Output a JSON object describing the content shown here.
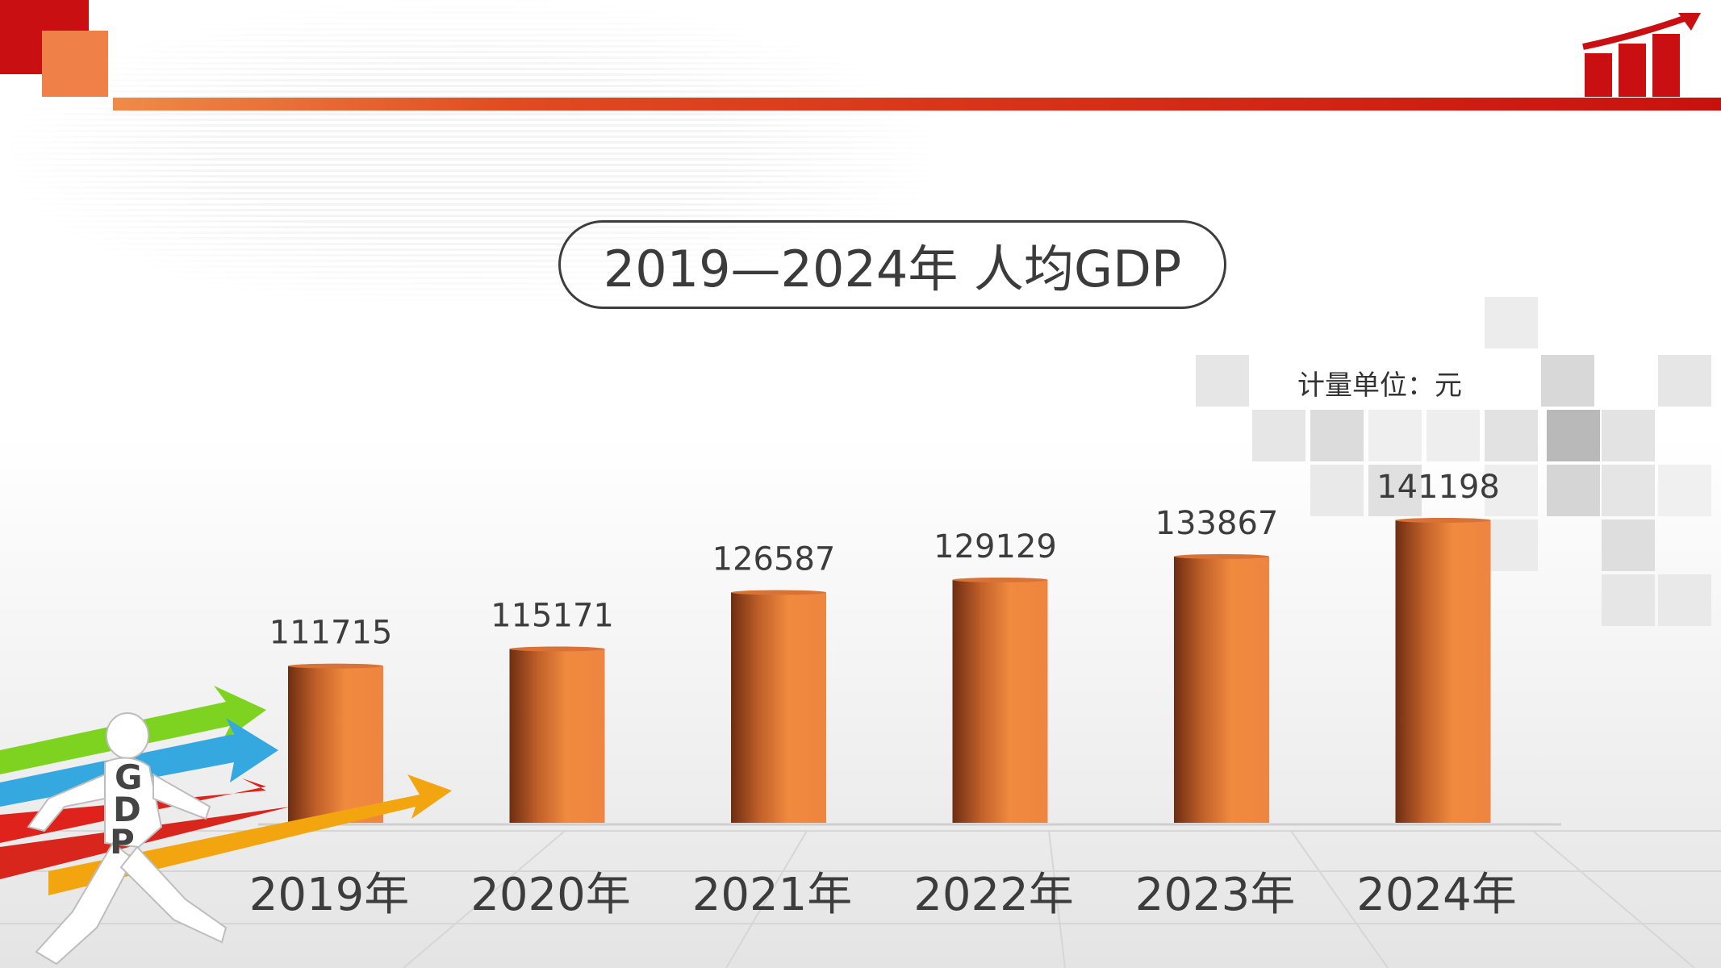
{
  "title": "2019—2024年 人均GDP",
  "unit_label": "计量单位：元",
  "figure_letters": [
    "G",
    "D",
    "P"
  ],
  "colors": {
    "accent_red": "#c90f12",
    "accent_orange": "#ef8148",
    "bar_orange": "#ef8540",
    "bar_dark": "#7a3415"
  },
  "chart_data": {
    "type": "bar",
    "title": "2019—2024年 人均GDP",
    "categories": [
      "2019年",
      "2020年",
      "2021年",
      "2022年",
      "2023年",
      "2024年"
    ],
    "values": [
      111715,
      115171,
      126587,
      129129,
      133867,
      141198
    ],
    "xlabel": "",
    "ylabel": "",
    "unit": "元",
    "ylim": [
      0,
      141198
    ],
    "grid": false,
    "legend": "none"
  }
}
